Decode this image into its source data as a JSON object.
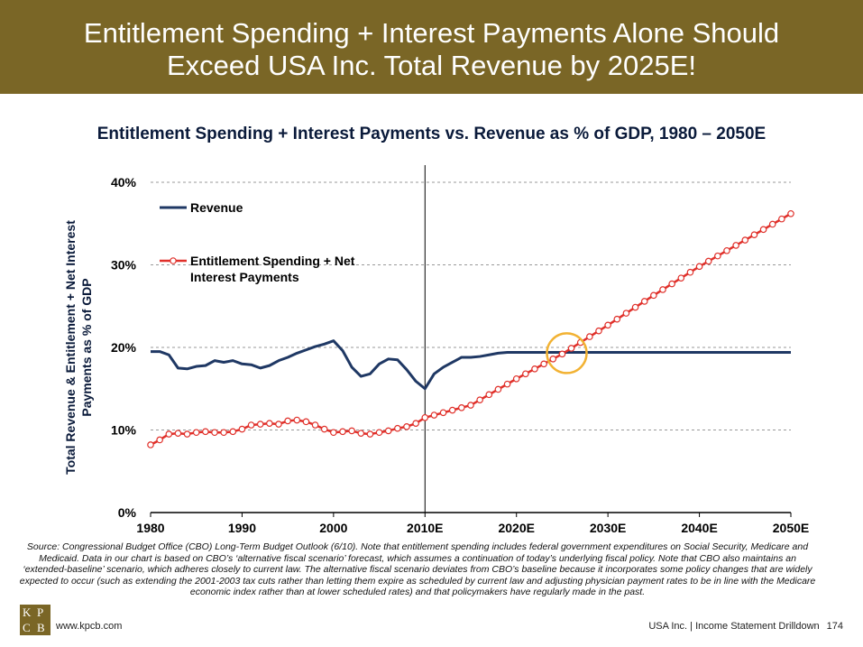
{
  "header": {
    "title_line1": "Entitlement Spending + Interest Payments Alone Should",
    "title_line2": "Exceed USA Inc. Total Revenue by 2025E!"
  },
  "chart_data": {
    "type": "line",
    "title": "Entitlement Spending + Interest Payments vs. Revenue as % of GDP, 1980 – 2050E",
    "ylabel_line1": "Total Revenue & Entitlement + Net Interest",
    "ylabel_line2": "Payments as % of GDP",
    "xlabel": "",
    "xlim": [
      1980,
      2050
    ],
    "ylim": [
      0,
      40
    ],
    "yticks": [
      {
        "v": 0,
        "label": "0%"
      },
      {
        "v": 10,
        "label": "10%"
      },
      {
        "v": 20,
        "label": "20%"
      },
      {
        "v": 30,
        "label": "30%"
      },
      {
        "v": 40,
        "label": "40%"
      }
    ],
    "xticks": [
      {
        "v": 1980,
        "label": "1980"
      },
      {
        "v": 1990,
        "label": "1990"
      },
      {
        "v": 2000,
        "label": "2000"
      },
      {
        "v": 2010,
        "label": "2010E"
      },
      {
        "v": 2020,
        "label": "2020E"
      },
      {
        "v": 2030,
        "label": "2030E"
      },
      {
        "v": 2040,
        "label": "2040E"
      },
      {
        "v": 2050,
        "label": "2050E"
      }
    ],
    "divider_year": 2010,
    "highlight_point": {
      "x": 2025.5,
      "y": 19.3
    },
    "series": [
      {
        "name": "Revenue",
        "color": "#1f3864",
        "x": [
          1980,
          1981,
          1982,
          1983,
          1984,
          1985,
          1986,
          1987,
          1988,
          1989,
          1990,
          1991,
          1992,
          1993,
          1994,
          1995,
          1996,
          1997,
          1998,
          1999,
          2000,
          2001,
          2002,
          2003,
          2004,
          2005,
          2006,
          2007,
          2008,
          2009,
          2010,
          2011,
          2012,
          2013,
          2014,
          2015,
          2016,
          2017,
          2018,
          2019,
          2020,
          2030,
          2040,
          2050
        ],
        "values": [
          19.5,
          19.5,
          19.1,
          17.5,
          17.4,
          17.7,
          17.8,
          18.4,
          18.2,
          18.4,
          18.0,
          17.9,
          17.5,
          17.8,
          18.4,
          18.8,
          19.3,
          19.7,
          20.1,
          20.4,
          20.8,
          19.6,
          17.6,
          16.5,
          16.8,
          18.0,
          18.6,
          18.5,
          17.3,
          15.9,
          15.0,
          16.8,
          17.6,
          18.2,
          18.8,
          18.8,
          18.9,
          19.1,
          19.3,
          19.4,
          19.4,
          19.4,
          19.4,
          19.4
        ]
      },
      {
        "name": "Entitlement Spending + Net Interest Payments",
        "color": "#e0302a",
        "marker_color": "#ffffff",
        "x": [
          1980,
          1981,
          1982,
          1983,
          1984,
          1985,
          1986,
          1987,
          1988,
          1989,
          1990,
          1991,
          1992,
          1993,
          1994,
          1995,
          1996,
          1997,
          1998,
          1999,
          2000,
          2001,
          2002,
          2003,
          2004,
          2005,
          2006,
          2007,
          2008,
          2009,
          2010,
          2015,
          2020,
          2025,
          2030,
          2035,
          2040,
          2045,
          2050
        ],
        "values": [
          8.2,
          8.8,
          9.5,
          9.6,
          9.5,
          9.7,
          9.8,
          9.7,
          9.7,
          9.8,
          10.1,
          10.6,
          10.7,
          10.8,
          10.7,
          11.1,
          11.2,
          11.0,
          10.6,
          10.1,
          9.7,
          9.8,
          9.9,
          9.6,
          9.5,
          9.7,
          9.9,
          10.2,
          10.4,
          10.8,
          11.5,
          13.0,
          16.2,
          19.2,
          22.7,
          26.3,
          29.8,
          33.0,
          36.2
        ]
      }
    ],
    "legend": [
      {
        "label": "Revenue",
        "label_line2": ""
      },
      {
        "label": "Entitlement Spending + Net",
        "label_line2": "Interest Payments"
      }
    ]
  },
  "source_text": "Source: Congressional Budget Office (CBO) Long-Term Budget Outlook (6/10). Note that entitlement spending includes federal government expenditures on Social Security, Medicare and Medicaid. Data in our chart is based on CBO’s ‘alternative fiscal scenario’ forecast, which assumes a continuation of today’s underlying fiscal policy. Note that CBO also maintains an ‘extended-baseline’ scenario, which adheres closely to current law.  The alternative fiscal scenario deviates from CBO’s baseline because it incorporates some policy changes that are widely expected to occur (such as extending the 2001-2003 tax cuts rather than letting them expire as scheduled by current law and adjusting physician payment rates to be in line with the Medicare economic index rather than at lower scheduled rates) and that policymakers have regularly made in the past.",
  "footer": {
    "logo_letters": [
      "K",
      "P",
      "C",
      "B"
    ],
    "url": "www.kpcb.com",
    "section": "USA Inc. | Income Statement Drilldown",
    "page": "174"
  },
  "colors": {
    "banner": "#7a6626",
    "revenue": "#1f3864",
    "entitlement": "#e0302a",
    "highlight": "#f2b233",
    "grid": "#999999"
  }
}
